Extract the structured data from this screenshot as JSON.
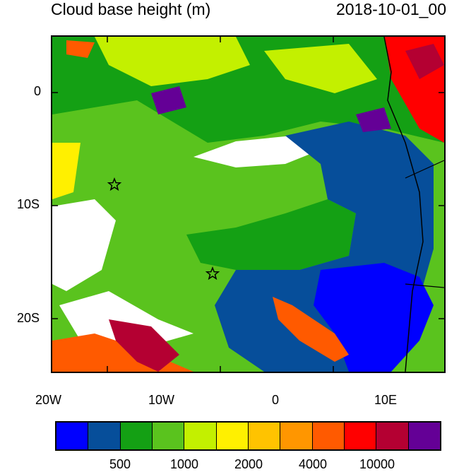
{
  "title": "Cloud base height (m)",
  "timestamp": "2018-10-01_00",
  "x_ticks": [
    "20W",
    "10W",
    "0",
    "10E"
  ],
  "y_ticks": [
    "0",
    "10S",
    "20S"
  ],
  "colorbar": {
    "colors": [
      "#0000ff",
      "#064e9a",
      "#14a014",
      "#5ac31e",
      "#c3f000",
      "#fff000",
      "#ffc300",
      "#ff9600",
      "#ff5a00",
      "#ff0000",
      "#b40032",
      "#640096"
    ],
    "labels": [
      "500",
      "1000",
      "2000",
      "4000",
      "10000"
    ]
  },
  "markers": [
    {
      "name": "star",
      "lon": -14.3,
      "lat": -8.0
    },
    {
      "name": "star",
      "lon": -5.8,
      "lat": -16.0
    }
  ]
}
